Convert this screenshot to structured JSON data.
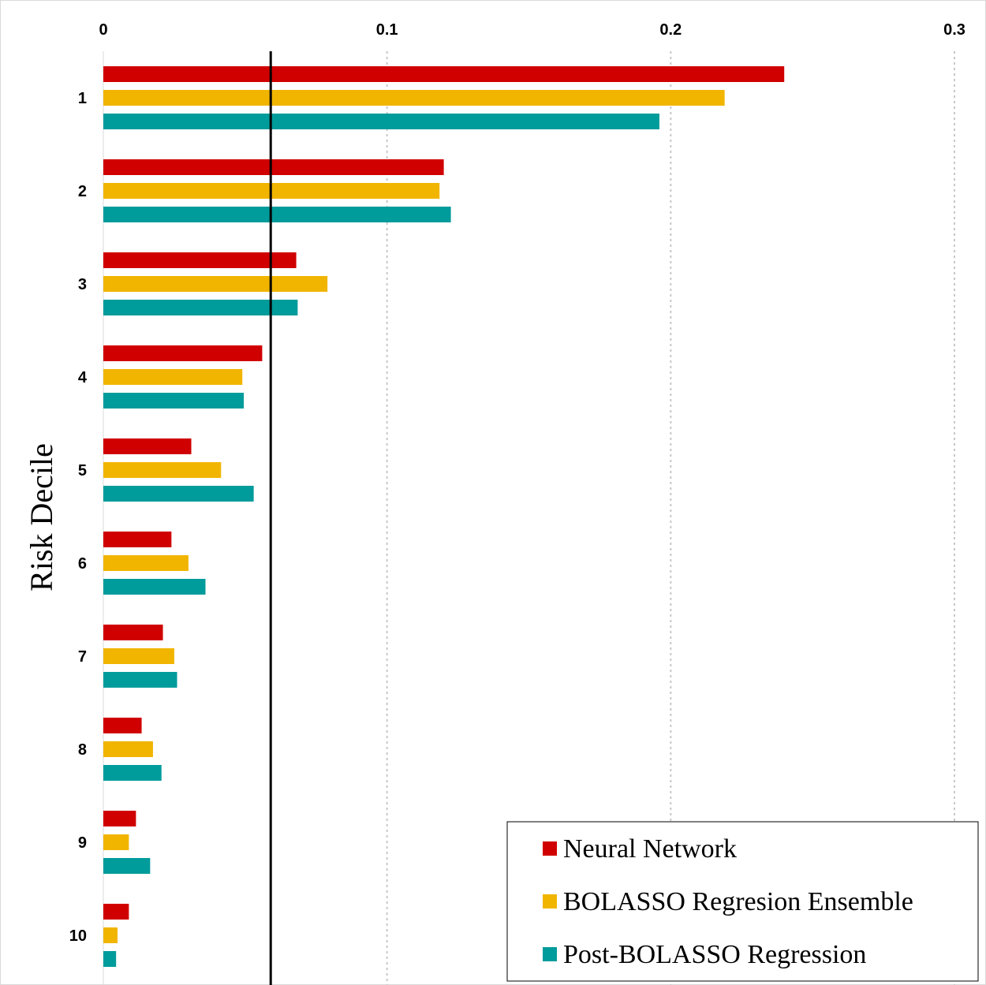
{
  "chart_data": {
    "type": "bar",
    "orientation": "horizontal",
    "title": "",
    "xlabel": "",
    "ylabel": "Risk Decile",
    "xlim": [
      0,
      0.3
    ],
    "x_ticks": [
      "0",
      "0.1",
      "0.2",
      "0.3"
    ],
    "x_tick_values": [
      0,
      0.1,
      0.2,
      0.3
    ],
    "x_axis_position": "top",
    "grid": "vertical dotted",
    "categories": [
      "1",
      "2",
      "3",
      "4",
      "5",
      "6",
      "7",
      "8",
      "9",
      "10"
    ],
    "series": [
      {
        "name": "Neural Network",
        "color": "#d00000",
        "values": [
          0.24,
          0.12,
          0.068,
          0.056,
          0.031,
          0.024,
          0.021,
          0.0135,
          0.0115,
          0.009
        ]
      },
      {
        "name": "BOLASSO Regresion Ensemble",
        "color": "#f1b500",
        "values": [
          0.219,
          0.1185,
          0.079,
          0.049,
          0.0415,
          0.03,
          0.025,
          0.0175,
          0.009,
          0.005
        ]
      },
      {
        "name": "Post-BOLASSO Regression",
        "color": "#009b9b",
        "values": [
          0.196,
          0.1225,
          0.0685,
          0.0495,
          0.053,
          0.036,
          0.026,
          0.0205,
          0.0165,
          0.0045
        ]
      }
    ],
    "reference_line": {
      "value": 0.059,
      "color": "#000000"
    },
    "legend_position": "bottom-right"
  }
}
